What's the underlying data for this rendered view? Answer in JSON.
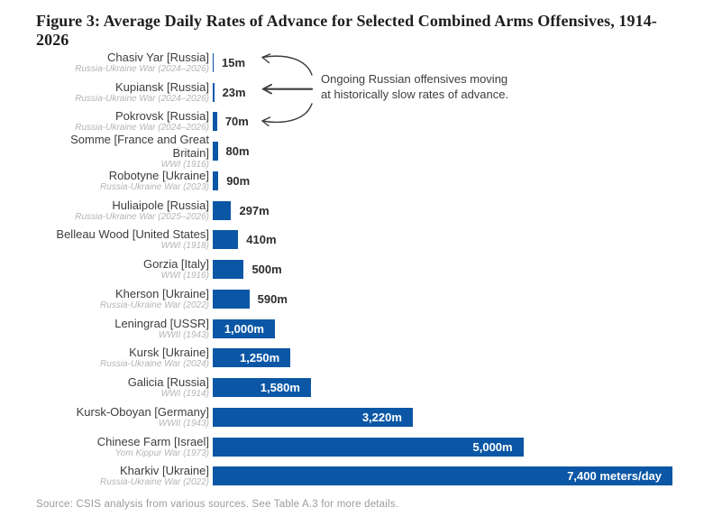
{
  "title": "Figure 3: Average Daily Rates of Advance for Selected Combined Arms Offensives, 1914-2026",
  "source": "Source: CSIS analysis from various sources. See Table A.3 for more details.",
  "annotation": {
    "line1": "Ongoing Russian offensives moving",
    "line2": "at historically slow rates of advance."
  },
  "colors": {
    "bar": "#0b57a5",
    "title": "#1e1e1e",
    "label": "#3d3d3d",
    "sublabel": "#b4b4b4",
    "value_outside": "#2d2d2d",
    "value_inside": "#ffffff",
    "annotation": "#3e3e3e",
    "source": "#9c9c9c"
  },
  "chart_data": {
    "type": "bar",
    "orientation": "horizontal",
    "unit": "meters per day",
    "xlim": [
      0,
      7400
    ],
    "grid": false,
    "max_value": 7400,
    "title": "Figure 3: Average Daily Rates of Advance for Selected Combined Arms Offensives, 1914-2026",
    "categories": [
      "Chasiv Yar [Russia]",
      "Kupiansk [Russia]",
      "Pokrovsk [Russia]",
      "Somme [France and Great Britain]",
      "Robotyne [Ukraine]",
      "Huliaipole [Russia]",
      "Belleau Wood [United States]",
      "Gorzia [Italy]",
      "Kherson [Ukraine]",
      "Leningrad [USSR]",
      "Kursk [Ukraine]",
      "Galicia [Russia]",
      "Kursk-Oboyan [Germany]",
      "Chinese Farm [Israel]",
      "Kharkiv [Ukraine]"
    ],
    "values": [
      15,
      23,
      70,
      80,
      90,
      297,
      410,
      500,
      590,
      1000,
      1250,
      1580,
      3220,
      5000,
      7400
    ],
    "rows": [
      {
        "label": "Chasiv Yar [Russia]",
        "sublabel": "Russia-Ukraine War (2024–2026)",
        "value": 15,
        "value_label": "15m"
      },
      {
        "label": "Kupiansk [Russia]",
        "sublabel": "Russia-Ukraine War (2024–2026)",
        "value": 23,
        "value_label": "23m"
      },
      {
        "label": "Pokrovsk [Russia]",
        "sublabel": "Russia-Ukraine War (2024–2026)",
        "value": 70,
        "value_label": "70m"
      },
      {
        "label": "Somme [France and Great Britain]",
        "sublabel": "WWI (1916)",
        "value": 80,
        "value_label": "80m"
      },
      {
        "label": "Robotyne [Ukraine]",
        "sublabel": "Russia-Ukraine War (2023)",
        "value": 90,
        "value_label": "90m"
      },
      {
        "label": "Huliaipole [Russia]",
        "sublabel": "Russia-Ukraine War (2025–2026)",
        "value": 297,
        "value_label": "297m"
      },
      {
        "label": "Belleau Wood [United States]",
        "sublabel": "WWI (1918)",
        "value": 410,
        "value_label": "410m"
      },
      {
        "label": "Gorzia [Italy]",
        "sublabel": "WWI (1916)",
        "value": 500,
        "value_label": "500m"
      },
      {
        "label": "Kherson [Ukraine]",
        "sublabel": "Russia-Ukraine War (2022)",
        "value": 590,
        "value_label": "590m"
      },
      {
        "label": "Leningrad [USSR]",
        "sublabel": "WWII (1943)",
        "value": 1000,
        "value_label": "1,000m"
      },
      {
        "label": "Kursk [Ukraine]",
        "sublabel": "Russia-Ukraine War (2024)",
        "value": 1250,
        "value_label": "1,250m"
      },
      {
        "label": "Galicia [Russia]",
        "sublabel": "WWI (1914)",
        "value": 1580,
        "value_label": "1,580m"
      },
      {
        "label": "Kursk-Oboyan [Germany]",
        "sublabel": "WWII (1943)",
        "value": 3220,
        "value_label": "3,220m"
      },
      {
        "label": "Chinese Farm [Israel]",
        "sublabel": "Yom Kippur War (1973)",
        "value": 5000,
        "value_label": "5,000m"
      },
      {
        "label": "Kharkiv [Ukraine]",
        "sublabel": "Russia-Ukraine War (2022)",
        "value": 7400,
        "value_label": "7,400 meters/day"
      }
    ]
  }
}
